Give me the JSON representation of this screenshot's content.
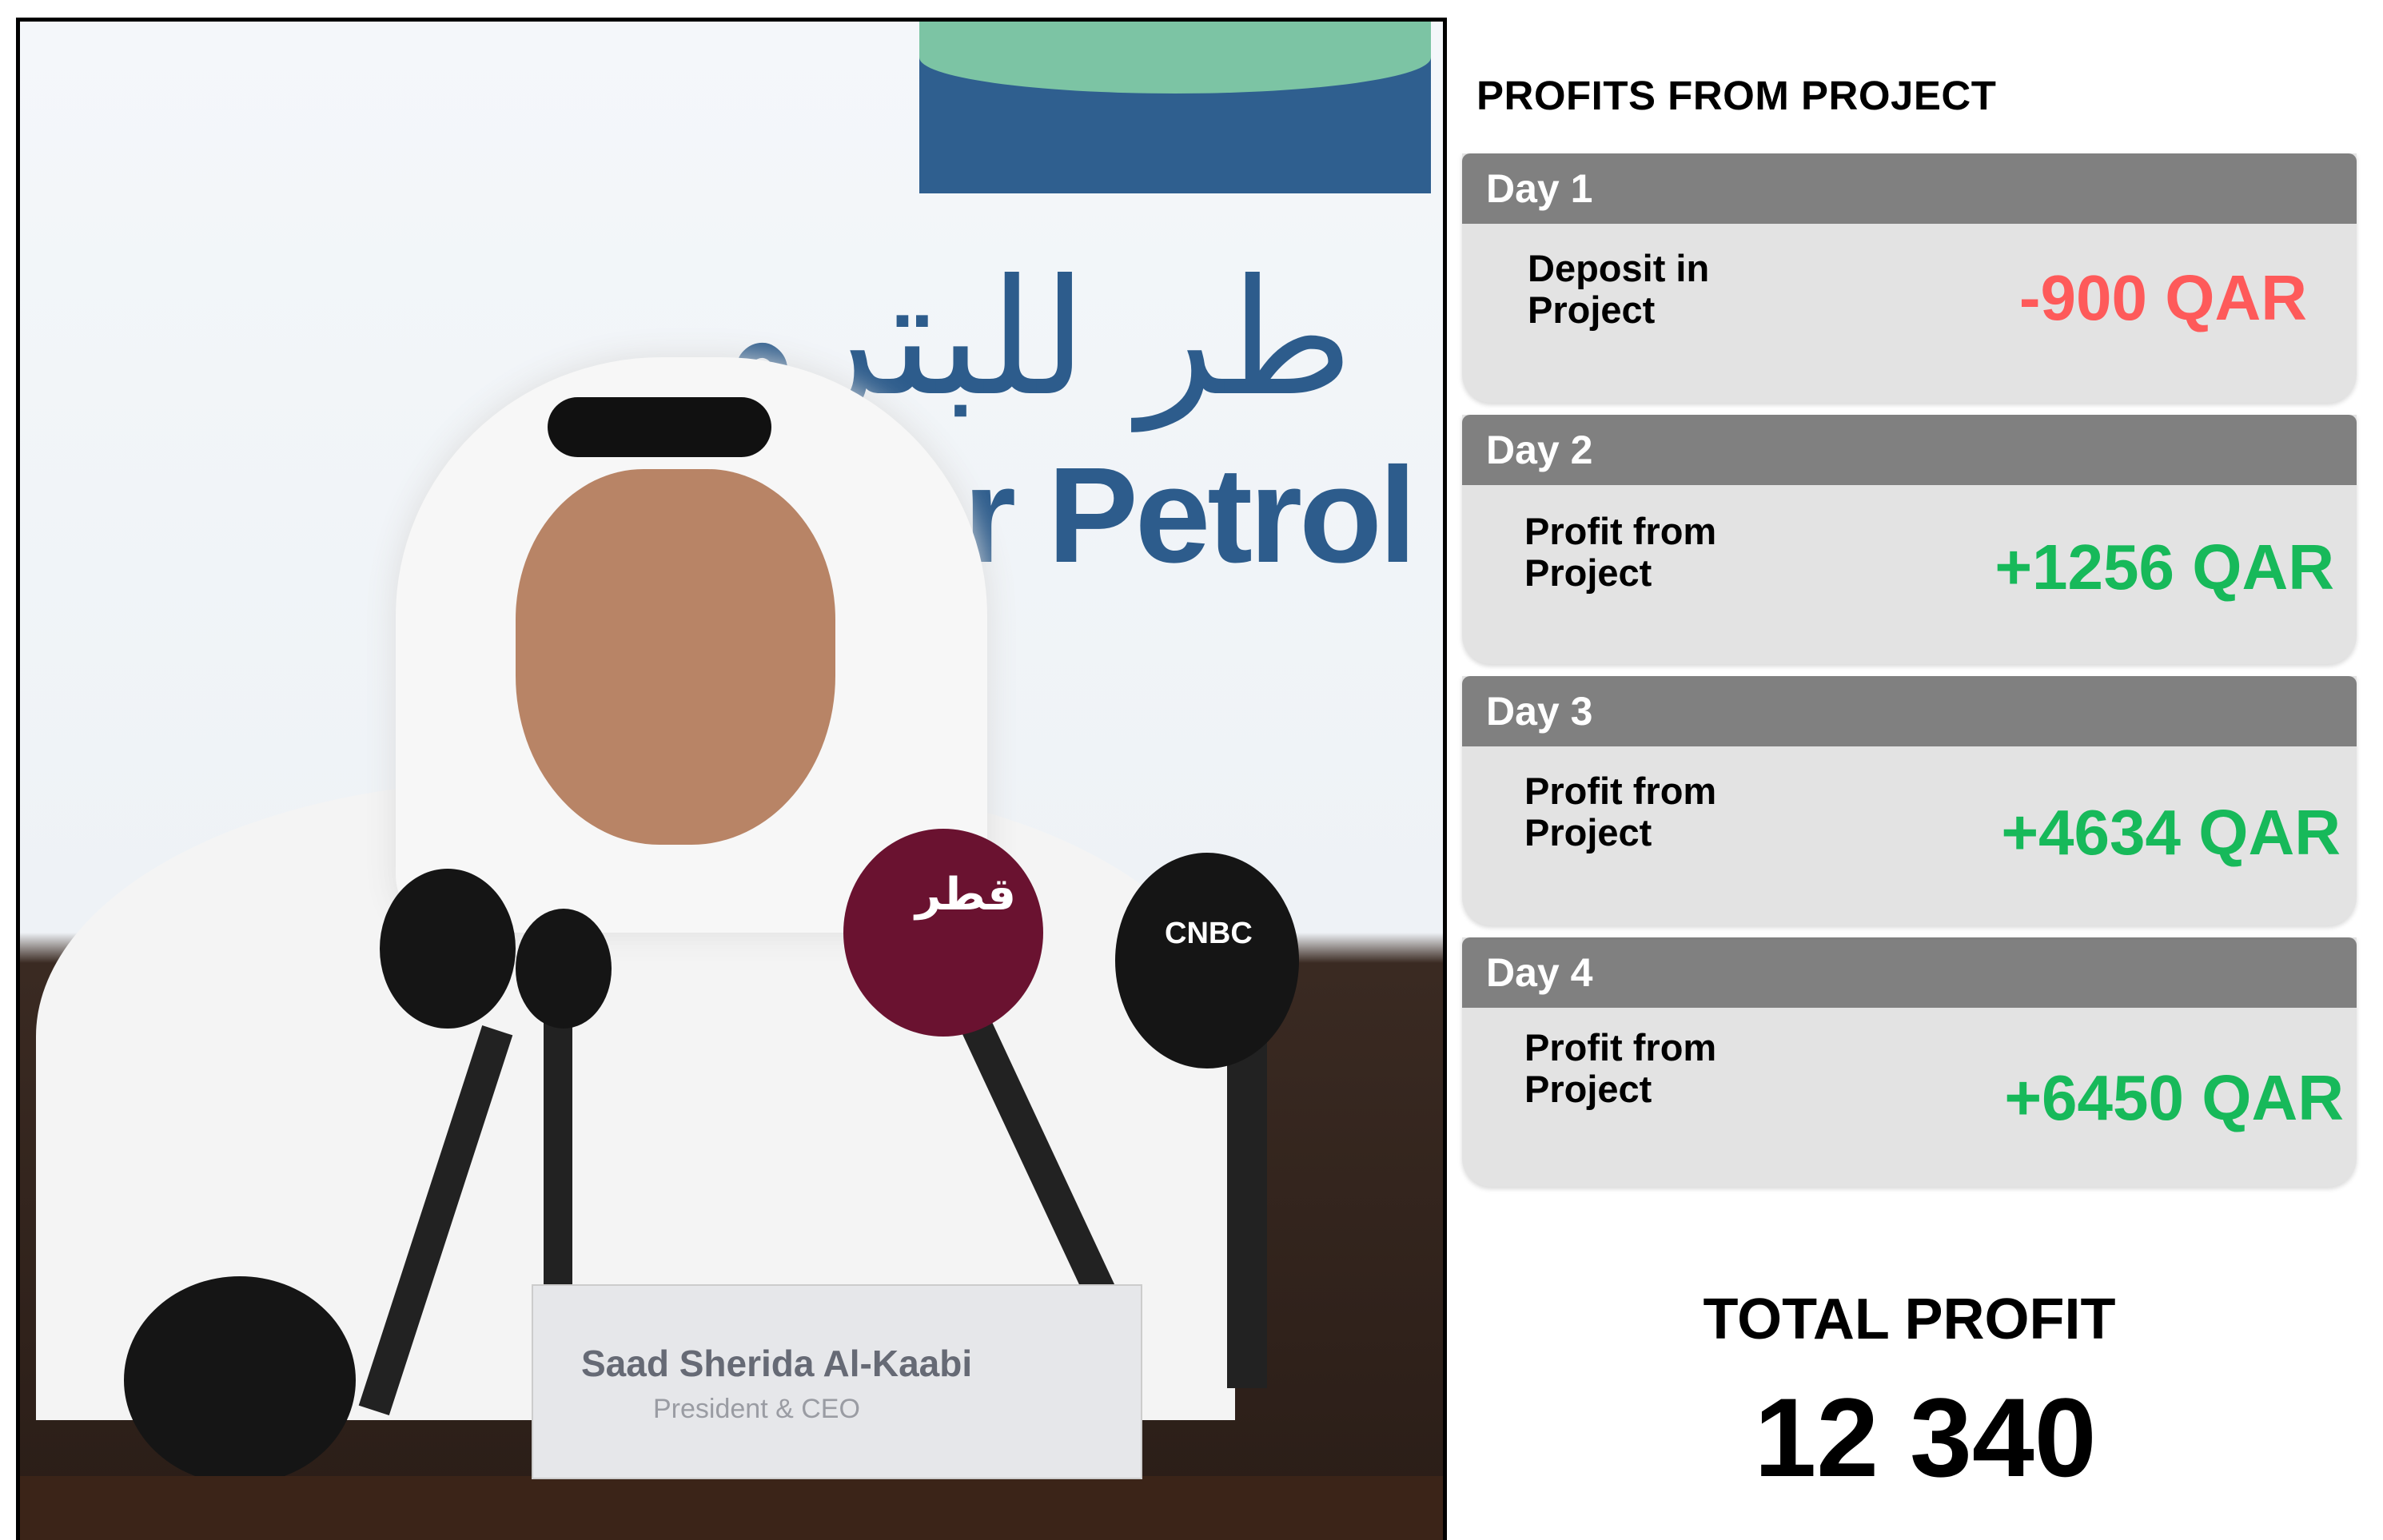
{
  "photo": {
    "logo_text": "r Petrol",
    "logo_arabic": "طر للبترو",
    "nameplate": {
      "name": "Saad Sherida Al-Kaabi",
      "title": "President & CEO"
    },
    "mic_brands": [
      "قطر",
      "CNBC"
    ]
  },
  "panel": {
    "title": "PROFITS FROM PROJECT",
    "cards": [
      {
        "day": "Day 1",
        "label_line1": "Deposit in",
        "label_line2": "Project",
        "value": "-900 QAR",
        "color": "#fe5a5a"
      },
      {
        "day": "Day 2",
        "label_line1": "Profit from",
        "label_line2": "Project",
        "value": "+1256 QAR",
        "color": "#17b95a"
      },
      {
        "day": "Day 3",
        "label_line1": "Profit from",
        "label_line2": "Project",
        "value": "+4634 QAR",
        "color": "#17b95a"
      },
      {
        "day": "Day 4",
        "label_line1": "Profit from",
        "label_line2": "Project",
        "value": "+6450 QAR",
        "color": "#17b95a"
      }
    ],
    "total_label": "TOTAL PROFIT",
    "total_value": "12 340"
  }
}
